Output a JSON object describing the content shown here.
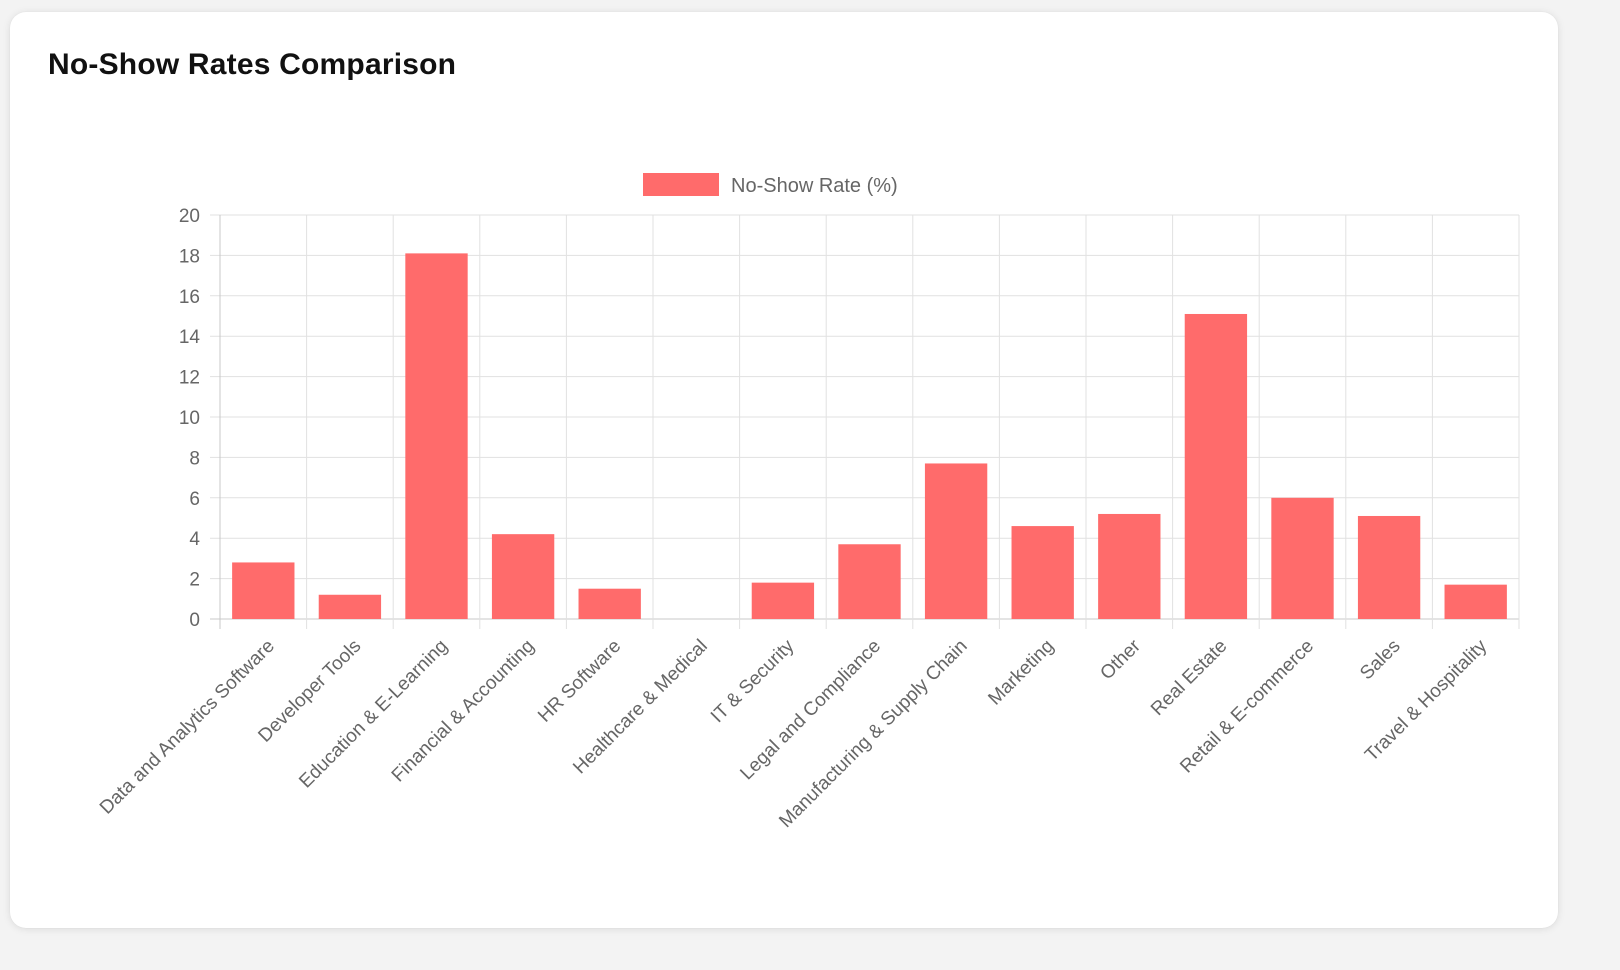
{
  "page": {
    "title": "No-Show Rates Comparison"
  },
  "colors": {
    "bar": "#ff6b6b",
    "grid": "#e1e1e1",
    "axis": "#c8c8c8",
    "text": "#666666",
    "title": "#111111",
    "card": "#ffffff",
    "background": "#f3f3f3"
  },
  "chart_data": {
    "type": "bar",
    "title": "No-Show Rates Comparison",
    "legend_position": "top-center",
    "grid": true,
    "ylim": [
      0,
      20
    ],
    "y_ticks": [
      0,
      2,
      4,
      6,
      8,
      10,
      12,
      14,
      16,
      18,
      20
    ],
    "categories": [
      "Data and Analytics Software",
      "Developer Tools",
      "Education & E-Learning",
      "Financial & Accounting",
      "HR Software",
      "Healthcare & Medical",
      "IT & Security",
      "Legal and Compliance",
      "Manufacturing & Supply Chain",
      "Marketing",
      "Other",
      "Real Estate",
      "Retail & E-commerce",
      "Sales",
      "Travel & Hospitality"
    ],
    "series": [
      {
        "name": "No-Show Rate (%)",
        "values": [
          2.8,
          1.2,
          18.1,
          4.2,
          1.5,
          0,
          1.8,
          3.7,
          7.7,
          4.6,
          5.2,
          15.1,
          6.0,
          5.1,
          1.7
        ]
      }
    ]
  }
}
